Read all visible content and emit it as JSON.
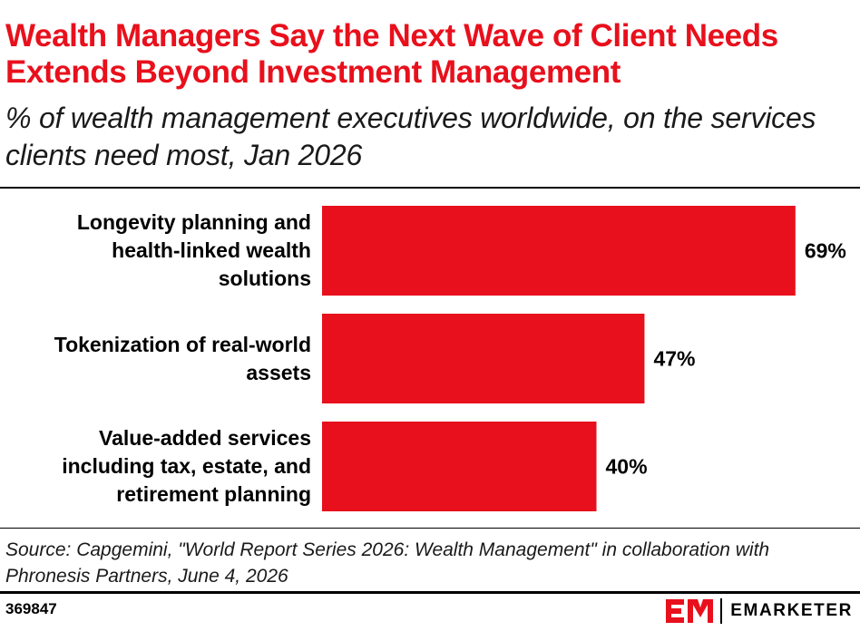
{
  "chart_data": {
    "type": "bar",
    "orientation": "horizontal",
    "title": "Wealth Managers Say the Next Wave of Client Needs Extends Beyond Investment Management",
    "subtitle": "% of wealth management executives worldwide, on the services clients need most, Jan 2026",
    "categories": [
      "Longevity planning and health-linked wealth solutions",
      "Tokenization of real-world assets",
      "Value-added services including tax, estate, and retirement planning"
    ],
    "category_label_lines": [
      [
        "Longevity planning and",
        "health-linked wealth",
        "solutions"
      ],
      [
        "Tokenization of real-world",
        "assets"
      ],
      [
        "Value-added services",
        "including tax, estate, and",
        "retirement planning"
      ]
    ],
    "values": [
      69,
      47,
      40
    ],
    "value_labels": [
      "69%",
      "47%",
      "40%"
    ],
    "unit": "%",
    "xlim": [
      0,
      80
    ],
    "grid": false,
    "legend": "none",
    "bar_color": "#e8101c"
  },
  "source": "Source: Capgemini, \"World Report Series 2026: Wealth Management\" in collaboration with Phronesis Partners, June 4, 2026",
  "chart_id": "369847",
  "brand": {
    "name": "EMARKETER",
    "logo_color": "#e8101c"
  }
}
